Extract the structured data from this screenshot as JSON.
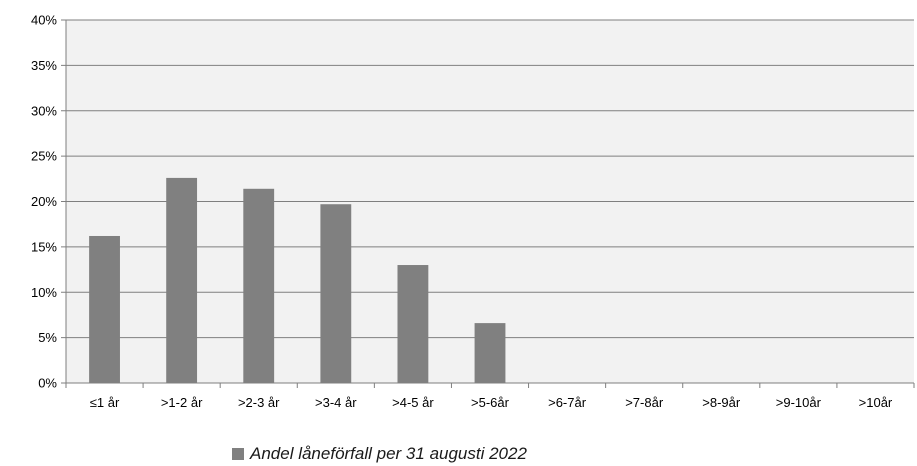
{
  "chart_data": {
    "type": "bar",
    "title": "",
    "xlabel": "",
    "ylabel": "",
    "categories": [
      "≤1 år",
      ">1-2 år",
      ">2-3 år",
      ">3-4 år",
      ">4-5 år",
      ">5-6år",
      ">6-7år",
      ">7-8år",
      ">8-9år",
      ">9-10år",
      ">10år"
    ],
    "series": [
      {
        "name": "Andel låneförfall per 31 augusti 2022",
        "values": [
          16.2,
          22.6,
          21.4,
          19.7,
          13.0,
          6.6,
          0,
          0,
          0,
          0,
          0
        ]
      }
    ],
    "ylim": [
      0,
      40
    ],
    "yticks": [
      0,
      5,
      10,
      15,
      20,
      25,
      30,
      35,
      40
    ],
    "ytick_format": "percent",
    "grid": true,
    "legend_position": "bottom-center",
    "colors": {
      "bar": "#808080",
      "plot_background": "#f2f2f2",
      "gridline": "#7f7f7f",
      "axis": "#7f7f7f"
    }
  }
}
